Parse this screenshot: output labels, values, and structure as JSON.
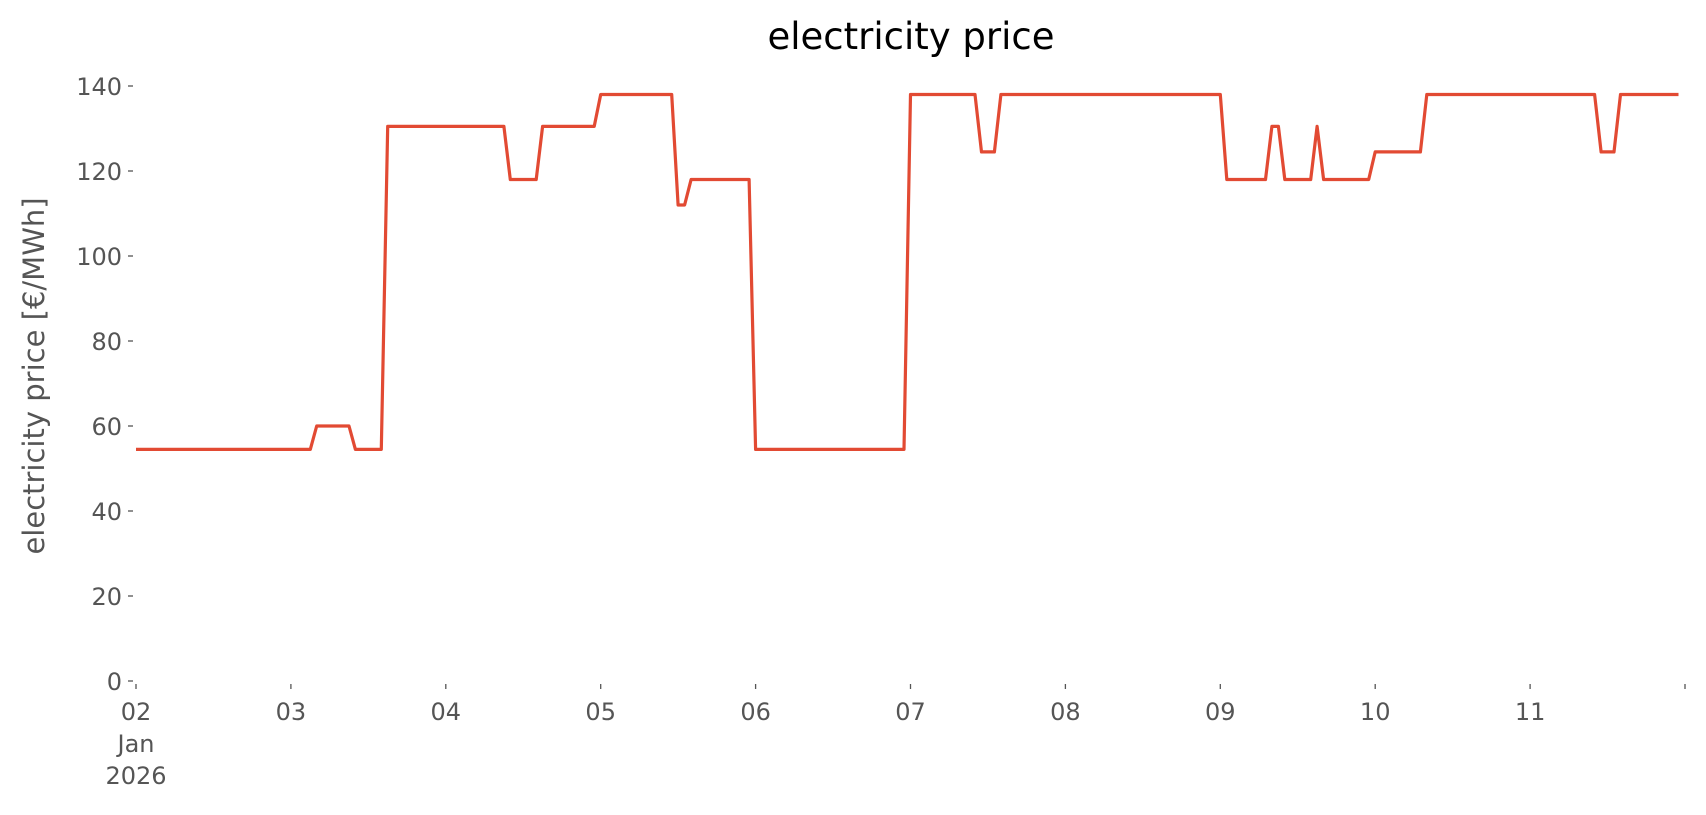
{
  "chart_data": {
    "type": "line",
    "title": "electricity price",
    "ylabel": "electricity price [€/MWh]",
    "x": [
      "2026-01-02T00:00",
      "2026-01-03T03:00",
      "2026-01-03T04:00",
      "2026-01-03T09:00",
      "2026-01-03T10:00",
      "2026-01-03T14:00",
      "2026-01-03T15:00",
      "2026-01-04T09:00",
      "2026-01-04T10:00",
      "2026-01-04T14:00",
      "2026-01-04T15:00",
      "2026-01-04T23:00",
      "2026-01-05T00:00",
      "2026-01-05T11:00",
      "2026-01-05T12:00",
      "2026-01-05T13:00",
      "2026-01-05T14:00",
      "2026-01-05T23:00",
      "2026-01-06T00:00",
      "2026-01-06T23:00",
      "2026-01-07T00:00",
      "2026-01-07T10:00",
      "2026-01-07T11:00",
      "2026-01-07T13:00",
      "2026-01-07T14:00",
      "2026-01-09T00:00",
      "2026-01-09T01:00",
      "2026-01-09T07:00",
      "2026-01-09T08:00",
      "2026-01-09T09:00",
      "2026-01-09T10:00",
      "2026-01-09T14:00",
      "2026-01-09T15:00",
      "2026-01-09T16:00",
      "2026-01-09T23:00",
      "2026-01-10T00:00",
      "2026-01-10T07:00",
      "2026-01-10T08:00",
      "2026-01-11T10:00",
      "2026-01-11T11:00",
      "2026-01-11T13:00",
      "2026-01-11T14:00",
      "2026-01-11T23:00"
    ],
    "series": [
      {
        "name": "electricity price",
        "color": "#e24a33",
        "values": [
          54.5,
          54.5,
          60,
          60,
          54.5,
          54.5,
          130.5,
          130.5,
          118,
          118,
          130.5,
          130.5,
          138,
          138,
          112,
          112,
          118,
          118,
          54.5,
          54.5,
          138,
          138,
          124.5,
          124.5,
          138,
          138,
          118,
          118,
          130.5,
          130.5,
          118,
          118,
          130.5,
          118,
          118,
          124.5,
          124.5,
          138,
          138,
          124.5,
          124.5,
          138,
          138
        ]
      }
    ],
    "xlim": [
      "2026-01-02T00:00",
      "2026-01-12T00:00"
    ],
    "xticks": [
      {
        "value": "2026-01-02T00:00",
        "label": "02\nJan\n2026"
      },
      {
        "value": "2026-01-03T00:00",
        "label": "03"
      },
      {
        "value": "2026-01-04T00:00",
        "label": "04"
      },
      {
        "value": "2026-01-05T00:00",
        "label": "05"
      },
      {
        "value": "2026-01-06T00:00",
        "label": "06"
      },
      {
        "value": "2026-01-07T00:00",
        "label": "07"
      },
      {
        "value": "2026-01-08T00:00",
        "label": "08"
      },
      {
        "value": "2026-01-09T00:00",
        "label": "09"
      },
      {
        "value": "2026-01-10T00:00",
        "label": "10"
      },
      {
        "value": "2026-01-11T00:00",
        "label": "11"
      }
    ],
    "ylim": [
      0,
      140
    ],
    "yticks": [
      0,
      20,
      40,
      60,
      80,
      100,
      120,
      140
    ],
    "grid": false
  }
}
